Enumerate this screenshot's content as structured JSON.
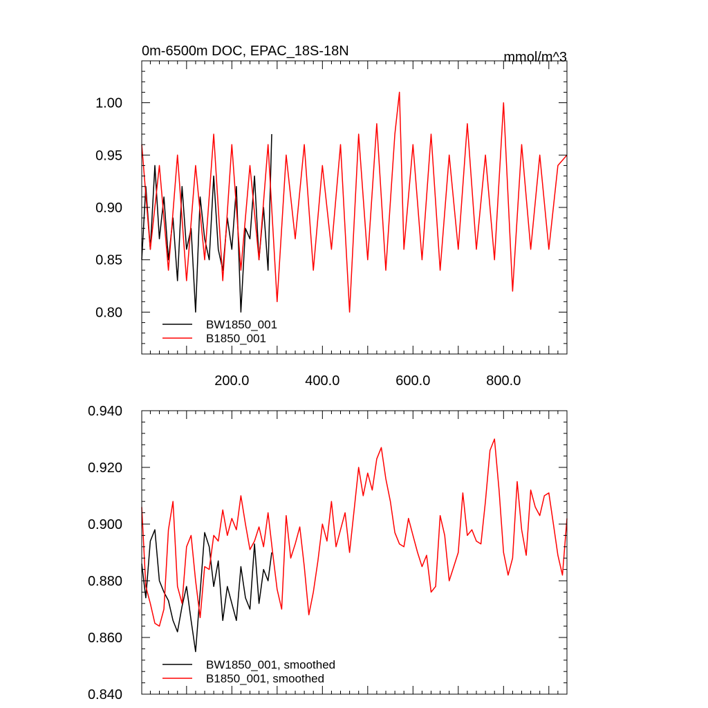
{
  "chart_data": [
    {
      "type": "line",
      "title": "0m-6500m DOC, EPAC_18S-18N",
      "units": "mmol/m^3",
      "xlim": [
        1,
        940
      ],
      "ylim": [
        0.76,
        1.04
      ],
      "xticks": [
        200,
        400,
        600,
        800
      ],
      "xtick_labels": [
        "200.0",
        "400.0",
        "600.0",
        "800.0"
      ],
      "yticks": [
        0.8,
        0.85,
        0.9,
        0.95,
        1.0
      ],
      "ytick_labels": [
        "0.80",
        "0.85",
        "0.90",
        "0.95",
        "1.00"
      ],
      "grid": false,
      "legend_position": "bottom-left",
      "series": [
        {
          "name": "BW1850_001",
          "color": "#000000",
          "x": [
            1,
            10,
            20,
            30,
            40,
            50,
            60,
            70,
            80,
            90,
            100,
            110,
            120,
            130,
            140,
            150,
            160,
            170,
            180,
            190,
            200,
            210,
            220,
            230,
            240,
            250,
            260,
            270,
            280,
            288
          ],
          "y": [
            0.85,
            0.92,
            0.86,
            0.94,
            0.87,
            0.91,
            0.85,
            0.89,
            0.83,
            0.92,
            0.86,
            0.88,
            0.8,
            0.91,
            0.87,
            0.85,
            0.93,
            0.86,
            0.84,
            0.89,
            0.86,
            0.92,
            0.8,
            0.88,
            0.87,
            0.93,
            0.85,
            0.9,
            0.84,
            0.97
          ]
        },
        {
          "name": "B1850_001",
          "color": "#ff0000",
          "x": [
            1,
            20,
            40,
            60,
            80,
            100,
            120,
            140,
            160,
            180,
            200,
            220,
            240,
            260,
            280,
            300,
            320,
            340,
            360,
            380,
            400,
            420,
            440,
            460,
            480,
            500,
            520,
            540,
            560,
            570,
            580,
            600,
            620,
            640,
            660,
            680,
            700,
            720,
            740,
            760,
            780,
            800,
            820,
            840,
            860,
            880,
            900,
            920,
            940
          ],
          "y": [
            0.96,
            0.86,
            0.94,
            0.84,
            0.95,
            0.83,
            0.94,
            0.85,
            0.97,
            0.83,
            0.96,
            0.84,
            0.94,
            0.85,
            0.96,
            0.81,
            0.95,
            0.87,
            0.96,
            0.84,
            0.94,
            0.86,
            0.96,
            0.8,
            0.97,
            0.85,
            0.98,
            0.84,
            0.97,
            1.01,
            0.86,
            0.96,
            0.85,
            0.97,
            0.84,
            0.95,
            0.86,
            0.98,
            0.86,
            0.95,
            0.85,
            1.0,
            0.82,
            0.96,
            0.86,
            0.95,
            0.86,
            0.94,
            0.95
          ]
        }
      ]
    },
    {
      "type": "line",
      "title": "",
      "xlim": [
        1,
        940
      ],
      "ylim": [
        0.84,
        0.94
      ],
      "yticks": [
        0.84,
        0.86,
        0.88,
        0.9,
        0.92,
        0.94
      ],
      "ytick_labels": [
        "0.840",
        "0.860",
        "0.880",
        "0.900",
        "0.920",
        "0.940"
      ],
      "grid": false,
      "legend_position": "bottom-left",
      "series": [
        {
          "name": "BW1850_001, smoothed",
          "color": "#000000",
          "x": [
            1,
            10,
            20,
            30,
            40,
            50,
            60,
            70,
            80,
            90,
            100,
            110,
            120,
            130,
            140,
            150,
            160,
            170,
            180,
            190,
            200,
            210,
            220,
            230,
            240,
            250,
            260,
            270,
            280,
            288
          ],
          "y": [
            0.886,
            0.874,
            0.894,
            0.898,
            0.88,
            0.876,
            0.873,
            0.866,
            0.862,
            0.871,
            0.878,
            0.866,
            0.855,
            0.876,
            0.897,
            0.892,
            0.878,
            0.887,
            0.866,
            0.878,
            0.872,
            0.866,
            0.885,
            0.874,
            0.87,
            0.893,
            0.872,
            0.884,
            0.88,
            0.89
          ]
        },
        {
          "name": "B1850_001, smoothed",
          "color": "#ff0000",
          "x": [
            1,
            10,
            20,
            30,
            40,
            50,
            60,
            70,
            80,
            90,
            100,
            110,
            120,
            130,
            140,
            150,
            160,
            170,
            180,
            190,
            200,
            210,
            220,
            230,
            240,
            250,
            260,
            270,
            280,
            290,
            300,
            310,
            320,
            330,
            340,
            350,
            360,
            370,
            380,
            390,
            400,
            410,
            420,
            430,
            440,
            450,
            460,
            470,
            480,
            490,
            500,
            510,
            520,
            530,
            540,
            550,
            560,
            570,
            580,
            590,
            600,
            610,
            620,
            630,
            640,
            650,
            660,
            670,
            680,
            690,
            700,
            710,
            720,
            730,
            740,
            750,
            760,
            770,
            780,
            790,
            800,
            810,
            820,
            830,
            840,
            850,
            860,
            870,
            880,
            890,
            900,
            910,
            920,
            930,
            940
          ],
          "y": [
            0.906,
            0.878,
            0.872,
            0.865,
            0.864,
            0.87,
            0.898,
            0.908,
            0.878,
            0.872,
            0.892,
            0.896,
            0.88,
            0.867,
            0.885,
            0.884,
            0.896,
            0.894,
            0.905,
            0.896,
            0.902,
            0.898,
            0.91,
            0.9,
            0.891,
            0.894,
            0.899,
            0.892,
            0.904,
            0.89,
            0.877,
            0.87,
            0.903,
            0.888,
            0.893,
            0.899,
            0.885,
            0.868,
            0.876,
            0.887,
            0.9,
            0.894,
            0.908,
            0.892,
            0.898,
            0.904,
            0.89,
            0.905,
            0.92,
            0.91,
            0.918,
            0.912,
            0.923,
            0.927,
            0.916,
            0.908,
            0.897,
            0.893,
            0.892,
            0.902,
            0.896,
            0.89,
            0.885,
            0.889,
            0.876,
            0.878,
            0.903,
            0.896,
            0.88,
            0.885,
            0.89,
            0.911,
            0.896,
            0.898,
            0.894,
            0.893,
            0.908,
            0.926,
            0.93,
            0.912,
            0.89,
            0.882,
            0.888,
            0.915,
            0.898,
            0.889,
            0.912,
            0.906,
            0.903,
            0.91,
            0.911,
            0.9,
            0.889,
            0.882,
            0.902
          ]
        }
      ]
    }
  ]
}
